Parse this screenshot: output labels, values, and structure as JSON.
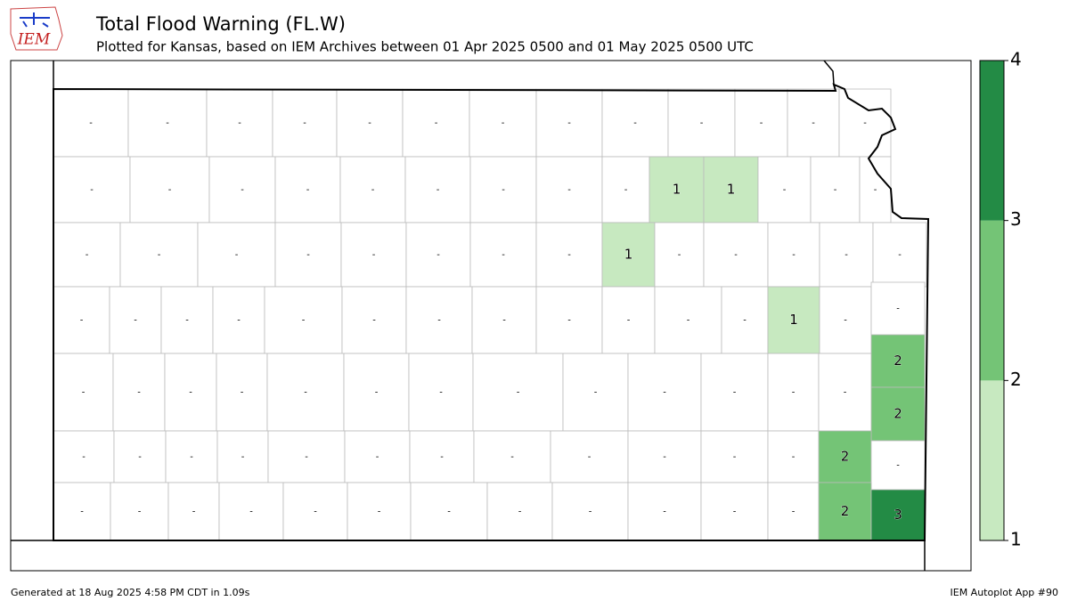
{
  "logo_text": "IEM",
  "header": {
    "title": "Total Flood Warning (FL.W)",
    "subtitle": "Plotted for Kansas, based on IEM Archives  between 01 Apr 2025 0500 and 01 May 2025 0500 UTC"
  },
  "map": {
    "no_data_label": "-",
    "counts": [
      null,
      null,
      null,
      null,
      null,
      null,
      null,
      null,
      null,
      null,
      null,
      null,
      null,
      null,
      null,
      null,
      null,
      null,
      null,
      null,
      null,
      null,
      1,
      1,
      null,
      null,
      null,
      null,
      null,
      null,
      null,
      null,
      null,
      null,
      null,
      1,
      null,
      null,
      null,
      null,
      null,
      null,
      null,
      null,
      null,
      null,
      null,
      null,
      null,
      null,
      null,
      null,
      null,
      1,
      null,
      null,
      null,
      null,
      null,
      null,
      null,
      null,
      null,
      null,
      null,
      null,
      null,
      null,
      null,
      2,
      2,
      null,
      null,
      null,
      null,
      null,
      null,
      null,
      null,
      null,
      null,
      null,
      null,
      2,
      null,
      null,
      null,
      null,
      null,
      null,
      null,
      null,
      null,
      null,
      null,
      null,
      null,
      2,
      3
    ]
  },
  "colorbar": {
    "ticks": [
      1,
      2,
      3,
      4
    ],
    "colors": [
      "#c7e9c0",
      "#74c476",
      "#238b45"
    ]
  },
  "footer": {
    "left": "Generated at 18 Aug 2025 4:58 PM CDT in 1.09s",
    "right": "IEM Autoplot App #90"
  }
}
